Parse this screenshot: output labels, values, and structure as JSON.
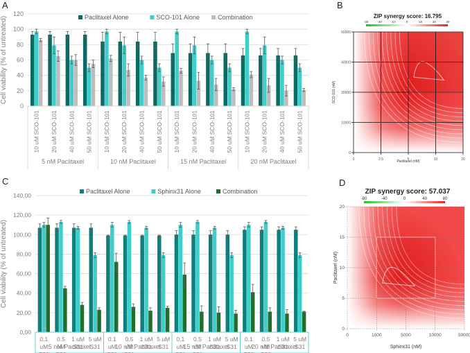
{
  "panels": {
    "A": {
      "letter": "A"
    },
    "B": {
      "letter": "B"
    },
    "C": {
      "letter": "C"
    },
    "D": {
      "letter": "D"
    }
  },
  "chart_data": [
    {
      "id": "A",
      "type": "bar",
      "title": "",
      "ylabel": "Cell viability (% of untreated)",
      "xlabel": "",
      "ylim": [
        0,
        120
      ],
      "yticks": [
        0,
        20,
        40,
        60,
        80,
        100,
        120
      ],
      "ytick_labels": [
        "0",
        "20",
        "40",
        "60",
        "80",
        "100",
        "120"
      ],
      "grid": true,
      "legend_position": "top",
      "groups": [
        "5 nM Paclitaxel",
        "10 nM Paclitaxel",
        "15 nM Paclitaxel",
        "20 nM Paclitaxel"
      ],
      "categories": [
        "10 uM SCO-101",
        "20 uM SCO-101",
        "40 uM SCO-101",
        "50 uM SCO-101",
        "10 uM SCO-101",
        "20 uM SCO-101",
        "40 uM SCO-101",
        "50 uM SCO-101",
        "10 uM SCO-101",
        "20 uM SCO-101",
        "40 uM SCO-101",
        "50 uM SCO-101",
        "10 uM SCO-101",
        "20 uM SCO-101",
        "40 uM SCO-101",
        "50 uM SCO-101"
      ],
      "series": [
        {
          "name": "Paclitaxel Alone",
          "color": "#0b6b62",
          "values": [
            93,
            93,
            93,
            93,
            84,
            84,
            84,
            84,
            69,
            69,
            69,
            69,
            66,
            66,
            66,
            66
          ],
          "errors": [
            4,
            4,
            4,
            4,
            12,
            12,
            12,
            12,
            12,
            12,
            12,
            12,
            9,
            9,
            9,
            9
          ]
        },
        {
          "name": "SCO-101 Alone",
          "color": "#3ecfcc",
          "values": [
            97,
            79,
            60,
            50,
            97,
            79,
            60,
            50,
            97,
            79,
            60,
            50,
            97,
            79,
            60,
            50
          ],
          "errors": [
            3,
            11,
            5,
            5,
            3,
            11,
            5,
            5,
            3,
            11,
            5,
            5,
            3,
            11,
            5,
            5
          ]
        },
        {
          "name": "Combination",
          "color": "#bdbdbd",
          "values": [
            86,
            65,
            60,
            55,
            62,
            47,
            37,
            32,
            46,
            33,
            28,
            22,
            41,
            27,
            20,
            21
          ],
          "errors": [
            2,
            7,
            7,
            5,
            4,
            8,
            3,
            6,
            3,
            11,
            8,
            2,
            4,
            9,
            7,
            2
          ]
        }
      ]
    },
    {
      "id": "B",
      "type": "heatmap",
      "title": "ZIP synergy score: 16.795",
      "xlabel": "Paclitaxel (nM)",
      "ylabel": "SCO-101 (nM)",
      "xtick_labels": [
        "0",
        "2.5",
        "5",
        "10",
        "20"
      ],
      "ytick_labels": [
        "0",
        "10000",
        "20000",
        "40000",
        "50000"
      ],
      "colorbar_ticks": [
        "-30",
        "-20",
        "-10",
        "0",
        "10",
        "20",
        "30"
      ],
      "colorbar_range": [
        -30,
        30
      ],
      "highlight_box": {
        "x": [
          "5",
          "20"
        ],
        "y": [
          "20000",
          "50000"
        ]
      },
      "grid": true
    },
    {
      "id": "C",
      "type": "bar",
      "title": "",
      "ylabel": "Cell viability (% of untreated)",
      "xlabel": "",
      "ylim": [
        0,
        140
      ],
      "yticks": [
        0,
        20,
        40,
        60,
        80,
        100,
        120,
        140
      ],
      "ytick_labels": [
        "0,00",
        "20,00",
        "40,00",
        "60,00",
        "80,00",
        "100,00",
        "120,00",
        "140,00"
      ],
      "grid": true,
      "legend_position": "top",
      "groups": [
        "5 nM Paclitaxel",
        "10 nM Paclitaxel",
        "15 nM Paclitaxel",
        "20 nM Paclitaxel"
      ],
      "categories": [
        "0.1 uM S31",
        "0.5 uM S31",
        "1 uM S31",
        "5 uM S31",
        "0.1 uM S31",
        "0.5 uM S31",
        "1 uM S31",
        "5 uM S31",
        "0.1 uM S31",
        "0.5 uM S31",
        "1 uM S31",
        "5 uM S31",
        "0.1 uM S31",
        "0.5 uM S31",
        "1 uM S31",
        "5 uM S31"
      ],
      "category_lines": [
        [
          "0.1",
          "uM",
          "S31"
        ],
        [
          "0.5",
          "uM",
          "S31"
        ],
        [
          "1 uM",
          "S31"
        ],
        [
          "5 uM",
          "S31"
        ],
        [
          "0.1",
          "uM",
          "S31"
        ],
        [
          "0.5",
          "uM",
          "S31"
        ],
        [
          "1 uM",
          "S31"
        ],
        [
          "5 uM",
          "S31"
        ],
        [
          "0.1",
          "uM",
          "S31"
        ],
        [
          "0.5",
          "uM",
          "S31"
        ],
        [
          "1 uM",
          "S31"
        ],
        [
          "5 uM",
          "S31"
        ],
        [
          "0.1",
          "uM",
          "S31"
        ],
        [
          "0.5",
          "uM",
          "S31"
        ],
        [
          "1 uM",
          "S31"
        ],
        [
          "5 uM",
          "S31"
        ]
      ],
      "series": [
        {
          "name": "Paclitaxel Alone",
          "color": "#0e7f7a",
          "values": [
            107,
            107,
            107,
            107,
            99,
            99,
            99,
            99,
            100,
            100,
            100,
            100,
            105,
            105,
            105,
            105
          ],
          "errors": [
            4,
            4,
            4,
            4,
            0.5,
            0.5,
            0.5,
            0.5,
            4,
            4,
            4,
            4,
            3,
            3,
            3,
            3
          ]
        },
        {
          "name": "Sphinx31 Alone",
          "color": "#3ecfcc",
          "values": [
            110,
            113,
            107,
            79,
            110,
            113,
            107,
            79,
            110,
            113,
            107,
            79,
            110,
            113,
            107,
            79
          ],
          "errors": [
            2.5,
            1.5,
            1.5,
            2.5,
            2.5,
            1.5,
            1.5,
            2.5,
            2.5,
            1.5,
            1.5,
            2.5,
            2.5,
            1.5,
            1.5,
            2.5
          ]
        },
        {
          "name": "Combination",
          "color": "#1f6e2a",
          "values": [
            110,
            45,
            28,
            23,
            72,
            26,
            22,
            25,
            59,
            21,
            20,
            19,
            41,
            21,
            19,
            21
          ],
          "errors": [
            7,
            2,
            2.5,
            2,
            9,
            3,
            3,
            1.5,
            12,
            6,
            6,
            3.5,
            8,
            4,
            4,
            0.5
          ]
        }
      ]
    },
    {
      "id": "D",
      "type": "heatmap",
      "title": "ZIP synergy score: 57.037",
      "xlabel": "Sphinx31 (nM)",
      "ylabel": "Paclitaxel (nM)",
      "xtick_labels": [
        "0",
        "1000",
        "5000",
        "10000",
        "50000"
      ],
      "ytick_labels": [
        "0",
        "5",
        "10",
        "15",
        "20"
      ],
      "colorbar_ticks": [
        "-80",
        "-40",
        "0",
        "40",
        "80"
      ],
      "colorbar_range": [
        -80,
        80
      ],
      "highlight_box": {
        "x": [
          "1000",
          "10000"
        ],
        "y": [
          "5",
          "15"
        ]
      },
      "grid": true
    }
  ]
}
